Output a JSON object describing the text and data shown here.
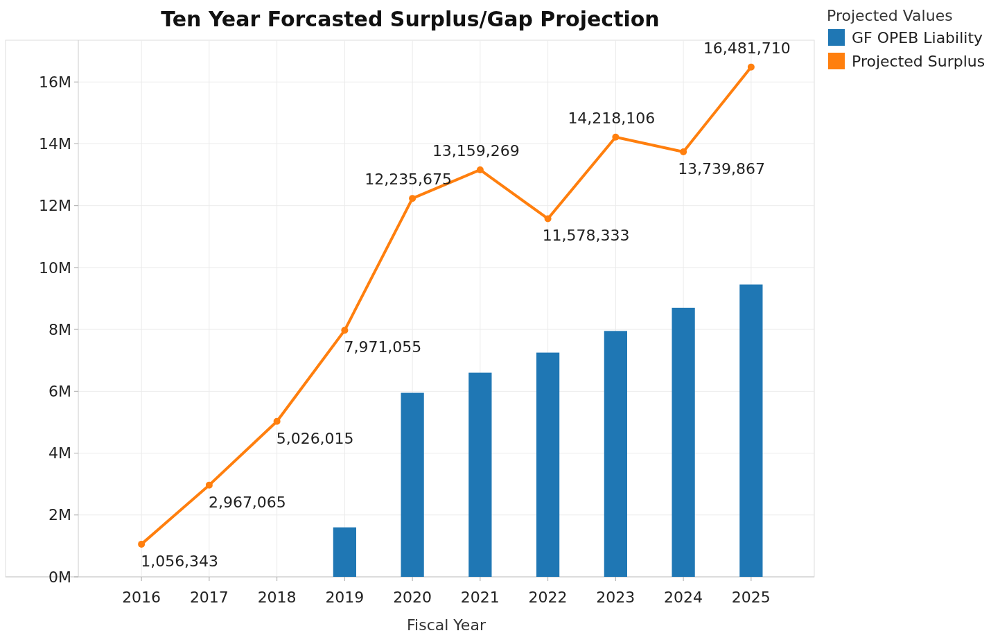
{
  "chart_data": {
    "type": "bar",
    "title": "Ten Year Forcasted Surplus/Gap Projection",
    "xlabel": "Fiscal Year",
    "legend_title": "Projected Values",
    "categories": [
      "2016",
      "2017",
      "2018",
      "2019",
      "2020",
      "2021",
      "2022",
      "2023",
      "2024",
      "2025"
    ],
    "series": [
      {
        "name": "GF OPEB Liability",
        "color": "#1f77b4",
        "values": [
          null,
          null,
          null,
          1600000,
          5950000,
          6600000,
          7250000,
          7950000,
          8700000,
          9450000
        ]
      },
      {
        "name": "Projected Surplus",
        "type": "line",
        "color": "#ff7f0e",
        "marker": "circle",
        "values": [
          1056343,
          2967065,
          5026015,
          7971055,
          12235675,
          13159269,
          11578333,
          14218106,
          13739867,
          16481710
        ],
        "value_labels": [
          "1,056,343",
          "2,967,065",
          "5,026,015",
          "7,971,055",
          "12,235,675",
          "13,159,269",
          "11,578,333",
          "14,218,106",
          "13,739,867",
          "16,481,710"
        ]
      }
    ],
    "ylim": [
      0,
      17350000
    ],
    "yticks": [
      {
        "value": 0,
        "label": "0M"
      },
      {
        "value": 2000000,
        "label": "2M"
      },
      {
        "value": 4000000,
        "label": "4M"
      },
      {
        "value": 6000000,
        "label": "6M"
      },
      {
        "value": 8000000,
        "label": "8M"
      },
      {
        "value": 10000000,
        "label": "10M"
      },
      {
        "value": 12000000,
        "label": "12M"
      },
      {
        "value": 14000000,
        "label": "14M"
      },
      {
        "value": 16000000,
        "label": "16M"
      }
    ],
    "grid": true,
    "legend": "top right"
  }
}
